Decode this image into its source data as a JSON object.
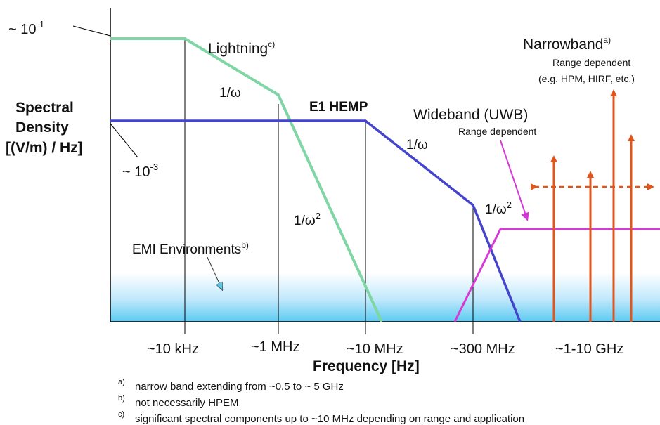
{
  "y_axis": {
    "title_lines": [
      "Spectral",
      "Density",
      "[(V/m) / Hz]"
    ],
    "top_value": "~ 10",
    "top_exp": "-1",
    "mid_value": "~ 10",
    "mid_exp": "-3"
  },
  "x_axis": {
    "title": "Frequency [Hz]",
    "ticks": [
      "~10 kHz",
      "~1 MHz",
      "~10 MHz",
      "~300 MHz",
      "~1-10 GHz"
    ]
  },
  "curves": {
    "lightning": {
      "label": "Lightning",
      "sup": "c)",
      "color": "#7fd6a4"
    },
    "e1_hemp": {
      "label": "E1 HEMP",
      "color": "#4444cc"
    },
    "wideband": {
      "label": "Wideband (UWB)",
      "sub": "Range dependent",
      "color": "#d63ad6"
    },
    "narrowband": {
      "label": "Narrowband",
      "sup": "a)",
      "sub1": "Range dependent",
      "sub2": "(e.g. HPM, HIRF, etc.)",
      "color": "#e0551b"
    }
  },
  "slopes": {
    "lightning_1_w": "1/ω",
    "lightning_1_w2": "1/ω",
    "hemp_1_w": "1/ω",
    "hemp_1_w2": "1/ω",
    "exp2": "2"
  },
  "emi": {
    "label": "EMI Environments",
    "sup": "b)"
  },
  "footnotes": [
    {
      "mark": "a)",
      "text": "narrow band extending from ~0,5 to ~ 5 GHz"
    },
    {
      "mark": "b)",
      "text": "not necessarily HPEM"
    },
    {
      "mark": "c)",
      "text": "significant spectral components up to ~10 MHz depending on range and application"
    }
  ]
}
